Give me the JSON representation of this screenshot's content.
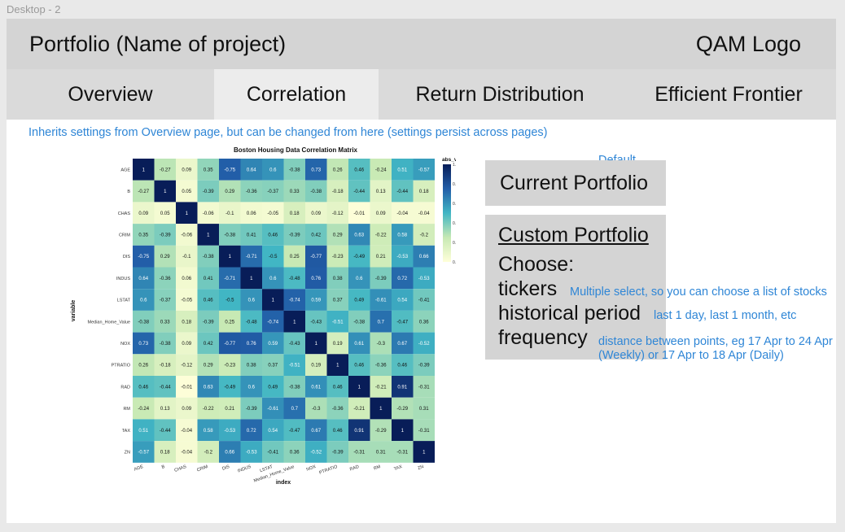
{
  "frame_label": "Desktop - 2",
  "header": {
    "title": "Portfolio (Name of project)",
    "logo": "QAM Logo"
  },
  "tabs": [
    {
      "label": "Overview",
      "active": false
    },
    {
      "label": "Correlation",
      "active": true
    },
    {
      "label": "Return Distribution",
      "active": false
    },
    {
      "label": "Efficient Frontier",
      "active": false
    }
  ],
  "inherit_note": "Inherits settings from Overview page, but can be changed from here (settings persist across pages)",
  "current_portfolio": {
    "badge": "Default",
    "label": "Current Portfolio"
  },
  "custom_portfolio": {
    "title": "Custom Portfolio",
    "choose": "Choose:",
    "options": [
      {
        "label": "tickers",
        "hint": "Multiple select, so you can choose a list of stocks"
      },
      {
        "label": "historical period",
        "hint": "last 1 day, last 1 month, etc"
      },
      {
        "label": "frequency",
        "hint": "distance between points, eg 17 Apr to 24 Apr (Weekly) or 17 Apr to 18 Apr (Daily)"
      }
    ]
  },
  "colors": {
    "accent_text": "#2f86d6",
    "header_bg": "#d4d4d4",
    "active_tab_bg": "#ececec"
  },
  "chart_data": {
    "type": "heatmap",
    "title": "Boston Housing Data Correlation Matrix",
    "xlabel": "index",
    "ylabel": "variable",
    "legend_title": "abs_val",
    "legend_ticks": [
      "1.0",
      "0.8",
      "0.6",
      "0.4",
      "0.2",
      "0.0"
    ],
    "legend_placement": "right",
    "variables": [
      "AGE",
      "B",
      "CHAS",
      "CRIM",
      "DIS",
      "INDUS",
      "LSTAT",
      "Median_Home_Value",
      "NOX",
      "PTRATIO",
      "RAD",
      "RM",
      "TAX",
      "ZN"
    ],
    "matrix": [
      [
        1,
        -0.27,
        0.09,
        0.35,
        -0.75,
        0.64,
        0.6,
        -0.38,
        0.73,
        0.26,
        0.46,
        -0.24,
        0.51,
        -0.57
      ],
      [
        -0.27,
        1,
        0.05,
        -0.39,
        0.29,
        -0.36,
        -0.37,
        0.33,
        -0.38,
        -0.18,
        -0.44,
        0.13,
        -0.44,
        0.18
      ],
      [
        0.09,
        0.05,
        1,
        -0.06,
        -0.1,
        0.06,
        -0.05,
        0.18,
        0.09,
        -0.12,
        -0.01,
        0.09,
        -0.04,
        -0.04
      ],
      [
        0.35,
        -0.39,
        -0.06,
        1,
        -0.38,
        0.41,
        0.46,
        -0.39,
        0.42,
        0.29,
        0.63,
        -0.22,
        0.58,
        -0.2
      ],
      [
        -0.75,
        0.29,
        -0.1,
        -0.38,
        1,
        -0.71,
        -0.5,
        0.25,
        -0.77,
        -0.23,
        -0.49,
        0.21,
        -0.53,
        0.66
      ],
      [
        0.64,
        -0.36,
        0.06,
        0.41,
        -0.71,
        1,
        0.6,
        -0.48,
        0.76,
        0.38,
        0.6,
        -0.39,
        0.72,
        -0.53
      ],
      [
        0.6,
        -0.37,
        -0.05,
        0.46,
        -0.5,
        0.6,
        1,
        -0.74,
        0.59,
        0.37,
        0.49,
        -0.61,
        0.54,
        -0.41
      ],
      [
        -0.38,
        0.33,
        0.18,
        -0.39,
        0.25,
        -0.48,
        -0.74,
        1,
        -0.43,
        -0.51,
        -0.38,
        0.7,
        -0.47,
        0.36
      ],
      [
        0.73,
        -0.38,
        0.09,
        0.42,
        -0.77,
        0.76,
        0.59,
        -0.43,
        1,
        0.19,
        0.61,
        -0.3,
        0.67,
        -0.52
      ],
      [
        0.26,
        -0.18,
        -0.12,
        0.29,
        -0.23,
        0.38,
        0.37,
        -0.51,
        0.19,
        1,
        0.46,
        -0.36,
        0.46,
        -0.39
      ],
      [
        0.46,
        -0.44,
        -0.01,
        0.63,
        -0.49,
        0.6,
        0.49,
        -0.38,
        0.61,
        0.46,
        1,
        -0.21,
        0.91,
        -0.31
      ],
      [
        -0.24,
        0.13,
        0.09,
        -0.22,
        0.21,
        -0.39,
        -0.61,
        0.7,
        -0.3,
        -0.36,
        -0.21,
        1,
        -0.29,
        0.31
      ],
      [
        0.51,
        -0.44,
        -0.04,
        0.58,
        -0.53,
        0.72,
        0.54,
        -0.47,
        0.67,
        0.46,
        0.91,
        -0.29,
        1,
        -0.31
      ],
      [
        -0.57,
        0.18,
        -0.04,
        -0.2,
        0.66,
        -0.53,
        -0.41,
        0.36,
        -0.52,
        -0.39,
        -0.31,
        0.31,
        -0.31,
        1
      ]
    ]
  }
}
